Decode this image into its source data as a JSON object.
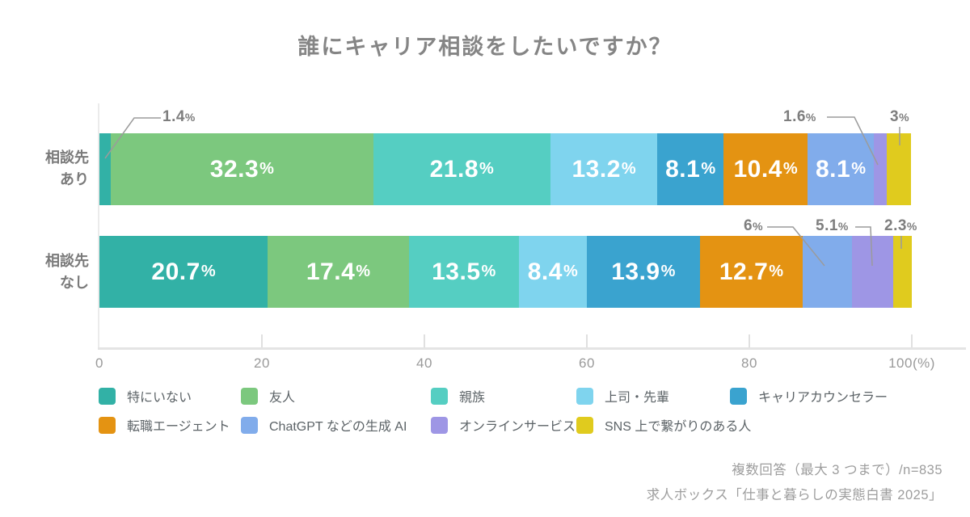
{
  "title": "誰にキャリア相談をしたいですか？",
  "chart_data": {
    "type": "bar",
    "variant": "horizontal-stacked",
    "unit": "%",
    "xlim": [
      0,
      100
    ],
    "grid": false,
    "legend_position": "bottom",
    "categories": [
      "相談先あり",
      "相談先なし"
    ],
    "category_lines": [
      [
        "相談先",
        "あり"
      ],
      [
        "相談先",
        "なし"
      ]
    ],
    "series": [
      {
        "name": "特にいない",
        "color": "#32B1A6",
        "values": [
          1.4,
          20.7
        ]
      },
      {
        "name": "友人",
        "color": "#7CC87E",
        "values": [
          32.3,
          17.4
        ]
      },
      {
        "name": "親族",
        "color": "#55CEC2",
        "values": [
          21.8,
          13.5
        ]
      },
      {
        "name": "上司・先輩",
        "color": "#7FD4EE",
        "values": [
          13.2,
          8.4
        ]
      },
      {
        "name": "キャリアカウンセラー",
        "color": "#3AA3CF",
        "values": [
          8.1,
          13.9
        ]
      },
      {
        "name": "転職エージェント",
        "color": "#E49312",
        "values": [
          10.4,
          12.7
        ]
      },
      {
        "name": "ChatGPT などの生成 AI",
        "color": "#81ACEB",
        "values": [
          8.1,
          6
        ]
      },
      {
        "name": "オンラインサービス",
        "color": "#9E96E5",
        "values": [
          1.6,
          5.1
        ]
      },
      {
        "name": "SNS 上で繋がりのある人",
        "color": "#E0CB1E",
        "values": [
          3,
          2.3
        ]
      }
    ],
    "value_labels": [
      [
        "1.4%",
        "32.3%",
        "21.8%",
        "13.2%",
        "8.1%",
        "10.4%",
        "8.1%",
        "1.6%",
        "3%"
      ],
      [
        "20.7%",
        "17.4%",
        "13.5%",
        "8.4%",
        "13.9%",
        "12.7%",
        "6%",
        "5.1%",
        "2.3%"
      ]
    ],
    "callout_indices": [
      [
        0,
        7,
        8
      ],
      [
        6,
        7,
        8
      ]
    ],
    "x_ticks": [
      {
        "value": 0,
        "label": "0"
      },
      {
        "value": 20,
        "label": "20"
      },
      {
        "value": 40,
        "label": "40"
      },
      {
        "value": 60,
        "label": "60"
      },
      {
        "value": 80,
        "label": "80"
      },
      {
        "value": 100,
        "label": "100(%)"
      }
    ]
  },
  "footer": {
    "line1": "複数回答（最大 3 つまで）/n=835",
    "line2": "求人ボックス「仕事と暮らしの実態白書 2025」"
  }
}
